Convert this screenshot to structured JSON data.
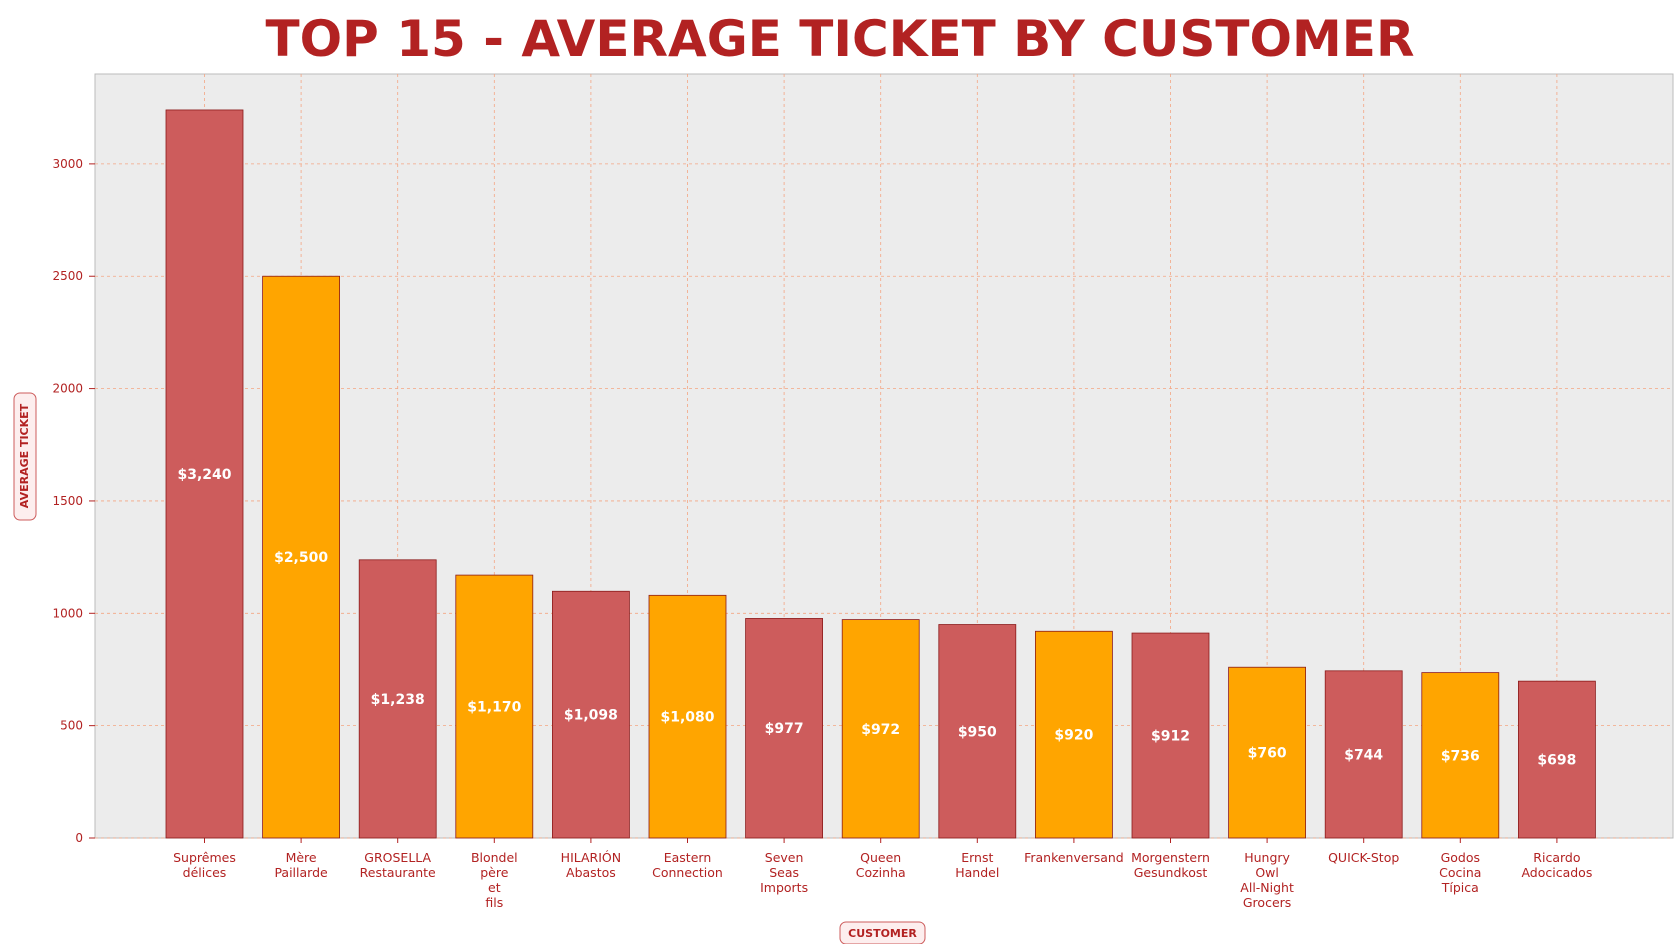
{
  "chart_data": {
    "type": "bar",
    "title": "TOP 15 - AVERAGE TICKET BY CUSTOMER",
    "xlabel": "CUSTOMER",
    "ylabel": "AVERAGE TICKET",
    "categories": [
      [
        "Suprêmes",
        "délices"
      ],
      [
        "Mère",
        "Paillarde"
      ],
      [
        "GROSELLA",
        "Restaurante"
      ],
      [
        "Blondel",
        "père",
        "et",
        "fils"
      ],
      [
        "HILARIÓN",
        "Abastos"
      ],
      [
        "Eastern",
        "Connection"
      ],
      [
        "Seven",
        "Seas",
        "Imports"
      ],
      [
        "Queen",
        "Cozinha"
      ],
      [
        "Ernst",
        "Handel"
      ],
      [
        "Frankenversand"
      ],
      [
        "Morgenstern",
        "Gesundkost"
      ],
      [
        "Hungry",
        "Owl",
        "All-Night",
        "Grocers"
      ],
      [
        "QUICK-Stop"
      ],
      [
        "Godos",
        "Cocina",
        "Típica"
      ],
      [
        "Ricardo",
        "Adocicados"
      ]
    ],
    "values": [
      3240,
      2500,
      1238,
      1170,
      1098,
      1080,
      977,
      972,
      950,
      920,
      912,
      760,
      744,
      736,
      698
    ],
    "value_labels": [
      "$3,240",
      "$2,500",
      "$1,238",
      "$1,170",
      "$1,098",
      "$1,080",
      "$977",
      "$972",
      "$950",
      "$920",
      "$912",
      "$760",
      "$744",
      "$736",
      "$698"
    ],
    "ylim": [
      0,
      3400
    ],
    "yticks": [
      "0",
      "500",
      "1000",
      "1500",
      "2000",
      "2500",
      "3000"
    ],
    "grid": true,
    "colors": {
      "bar_a": "#cd5c5c",
      "bar_b": "#ffa500",
      "title": "#b22222",
      "text": "#b22222",
      "plot_bg": "#ececec",
      "grid": "#f4a582"
    }
  }
}
